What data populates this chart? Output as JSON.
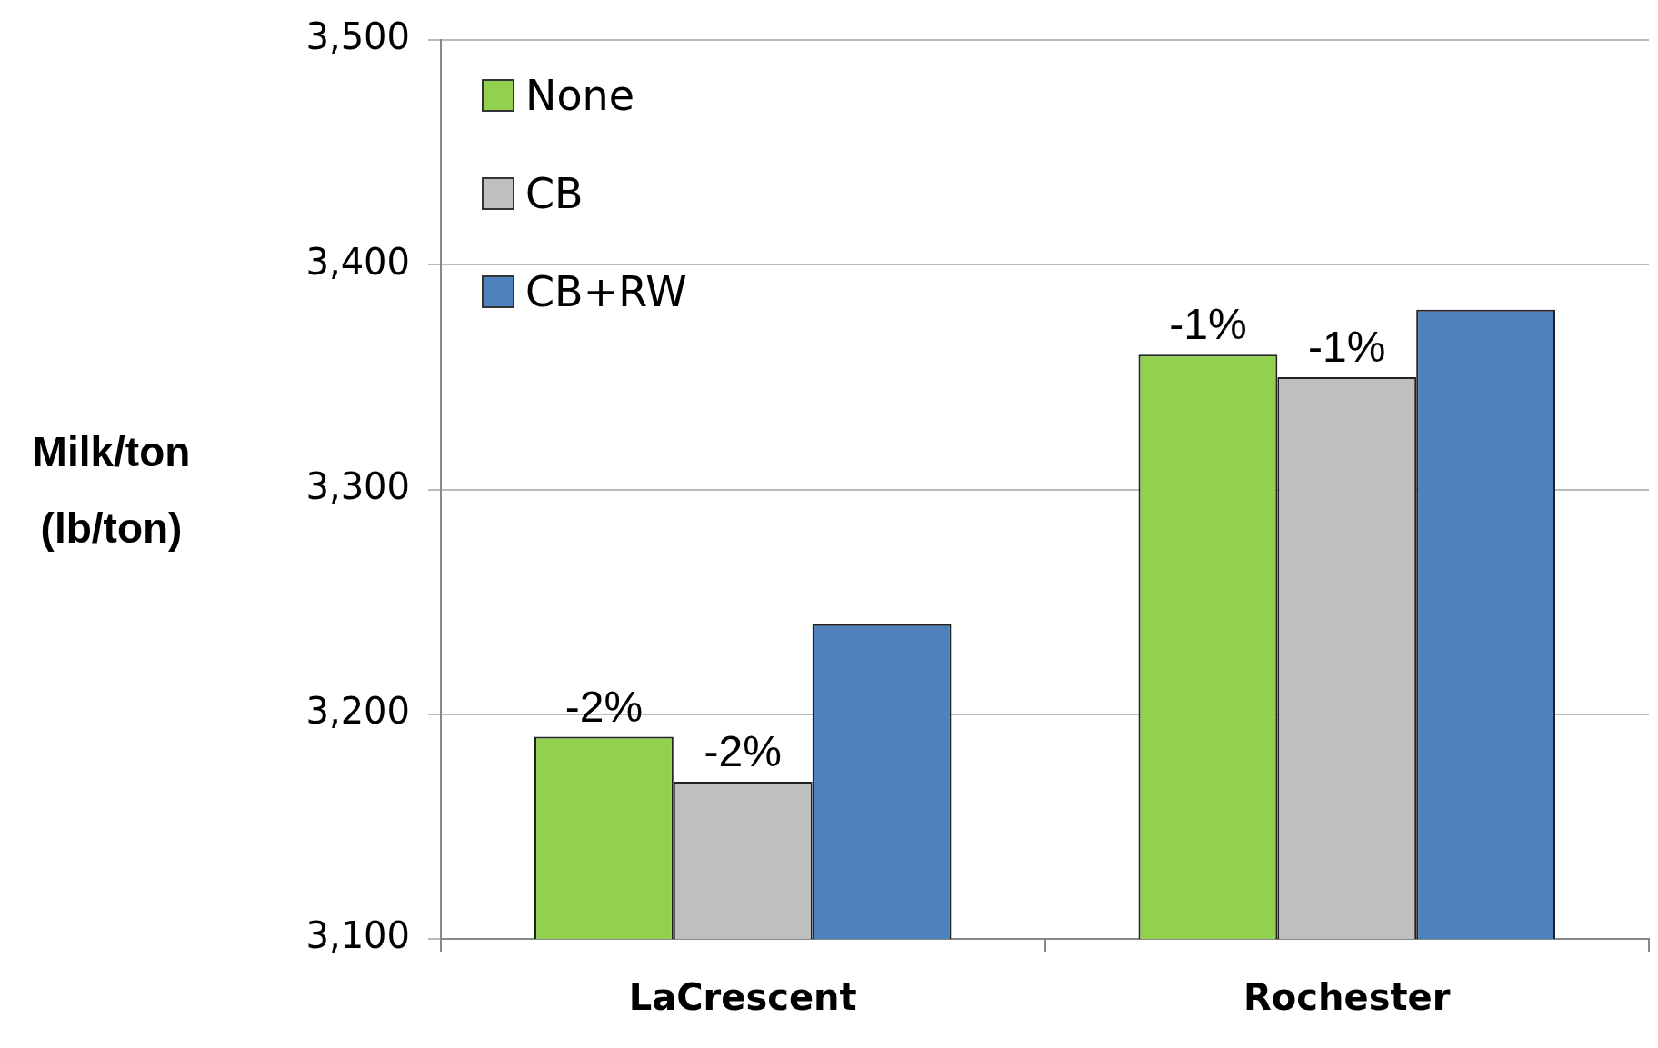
{
  "chart_data": {
    "type": "bar",
    "ylabel": "Milk/ton (lb/ton)",
    "categories": [
      "LaCrescent",
      "Rochester"
    ],
    "series": [
      {
        "name": "None",
        "color": "#92d050",
        "values": [
          3190,
          3360
        ]
      },
      {
        "name": "CB",
        "color": "#bfbfbf",
        "values": [
          3170,
          3350
        ]
      },
      {
        "name": "CB+RW",
        "color": "#4f81bd",
        "values": [
          3240,
          3380
        ]
      }
    ],
    "annotations": [
      "-2%",
      "-2%",
      "-1%",
      "-1%"
    ],
    "ylim": [
      3100,
      3500
    ],
    "yticks": [
      {
        "value": 3100,
        "label": "3,100"
      },
      {
        "value": 3200,
        "label": "3,200"
      },
      {
        "value": 3300,
        "label": "3,300"
      },
      {
        "value": 3400,
        "label": "3,400"
      },
      {
        "value": 3500,
        "label": "3,500"
      }
    ],
    "grid": "y",
    "legend": "top left"
  }
}
